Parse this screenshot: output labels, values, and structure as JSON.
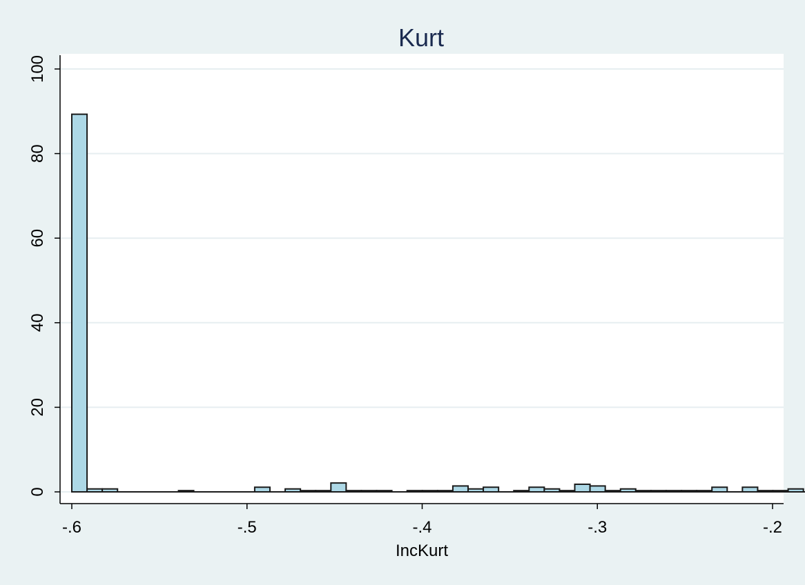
{
  "colors": {
    "page_background": "#eaf2f3",
    "plot_background": "#ffffff",
    "gridline": "#e6eef0",
    "bar_fill": "#add8e6",
    "bar_stroke": "#1a1a1a",
    "title": "#1a2a4f",
    "text": "#000000"
  },
  "chart_data": {
    "type": "bar",
    "subtype": "histogram",
    "title": "Kurt",
    "xlabel": "IncKurt",
    "ylabel": "",
    "xlim": [
      -0.6,
      -0.2
    ],
    "ylim": [
      0,
      100
    ],
    "grid": true,
    "bin_width": 0.0087,
    "bin_start": -0.6,
    "x_ticks": [
      -0.6,
      -0.5,
      -0.4,
      -0.3,
      -0.2
    ],
    "x_tick_labels": [
      "-.6",
      "-.5",
      "-.4",
      "-.3",
      "-.2"
    ],
    "y_ticks": [
      0,
      20,
      40,
      60,
      80,
      100
    ],
    "y_tick_labels": [
      "0",
      "20",
      "40",
      "60",
      "80",
      "100"
    ],
    "values": [
      89.3,
      0.7,
      0.7,
      0,
      0,
      0,
      0,
      0.3,
      0,
      0,
      0,
      0,
      1.1,
      0,
      0.7,
      0.3,
      0.3,
      2.1,
      0.3,
      0.3,
      0.3,
      0,
      0.3,
      0.3,
      0.3,
      1.4,
      0.7,
      1.1,
      0,
      0.3,
      1.1,
      0.7,
      0.3,
      1.8,
      1.4,
      0.3,
      0.7,
      0.3,
      0.3,
      0.3,
      0.3,
      0.3,
      1.1,
      0,
      1.1,
      0.3,
      0.3,
      0.7,
      0
    ]
  }
}
